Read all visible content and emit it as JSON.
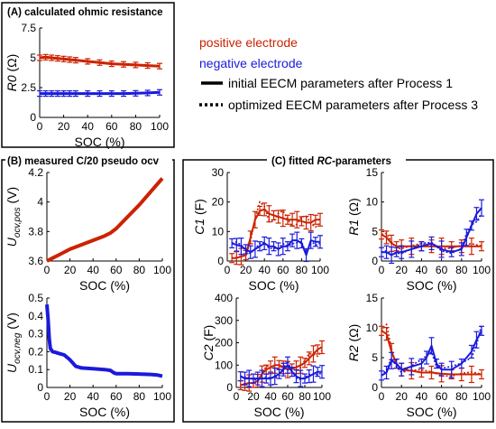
{
  "panels": {
    "A_title": "(A) calculated ohmic resistance",
    "B_title": "(B) measured C/20 pseudo ocv",
    "C_title": "(C) fitted RC-parameters",
    "C_title_prefix": "(C) fitted ",
    "C_title_italic": "RC",
    "C_title_suffix": "-parameters"
  },
  "legend": {
    "positive": "positive electrode",
    "negative": "negative electrode",
    "solid": "initial EECM parameters after Process 1",
    "dotted": "optimized EECM parameters after Process 3"
  },
  "colors": {
    "positive": "#cc2200",
    "negative": "#1a1adb",
    "axis": "#000000"
  },
  "chart_data": [
    {
      "id": "R0",
      "type": "line",
      "ylabel": "R0 (Ω)",
      "xlabel": "SOC (%)",
      "xlim": [
        0,
        100
      ],
      "ylim": [
        0,
        7.5
      ],
      "xticks": [
        "0",
        "20",
        "40",
        "60",
        "80",
        "100"
      ],
      "yticks": [
        "0",
        "2.5",
        "5",
        "7.5"
      ],
      "series": [
        {
          "name": "positive electrode",
          "x": [
            0,
            5,
            10,
            15,
            20,
            25,
            30,
            40,
            50,
            60,
            70,
            80,
            90,
            100
          ],
          "y": [
            5.0,
            5.05,
            5.0,
            4.95,
            4.9,
            4.85,
            4.8,
            4.7,
            4.6,
            4.5,
            4.45,
            4.4,
            4.35,
            4.3
          ]
        },
        {
          "name": "negative electrode",
          "x": [
            0,
            5,
            10,
            15,
            20,
            25,
            30,
            40,
            50,
            60,
            70,
            80,
            90,
            100
          ],
          "y": [
            2.0,
            2.0,
            2.0,
            2.0,
            2.0,
            2.0,
            2.0,
            2.0,
            2.0,
            2.0,
            2.0,
            2.02,
            2.05,
            2.1
          ]
        }
      ]
    },
    {
      "id": "Upos",
      "type": "line",
      "ylabel": "U_ocv,pos (V)",
      "xlabel": "SOC (%)",
      "xlim": [
        0,
        100
      ],
      "ylim": [
        3.6,
        4.2
      ],
      "xticks": [
        "0",
        "20",
        "40",
        "60",
        "80",
        "100"
      ],
      "yticks": [
        "3.6",
        "3.8",
        "4",
        "4.2"
      ],
      "series": [
        {
          "name": "positive electrode",
          "x": [
            0,
            5,
            10,
            20,
            30,
            40,
            50,
            55,
            60,
            70,
            80,
            90,
            100
          ],
          "y": [
            3.6,
            3.62,
            3.64,
            3.68,
            3.71,
            3.74,
            3.77,
            3.79,
            3.82,
            3.9,
            3.98,
            4.07,
            4.16
          ]
        }
      ]
    },
    {
      "id": "Uneg",
      "type": "line",
      "ylabel": "U_ocv,neg (V)",
      "xlabel": "SOC (%)",
      "xlim": [
        0,
        100
      ],
      "ylim": [
        0,
        0.55
      ],
      "xticks": [
        "0",
        "20",
        "40",
        "60",
        "80",
        "100"
      ],
      "yticks": [
        "0",
        "0.1",
        "0.2",
        "0.3",
        "0.4",
        "0.5"
      ],
      "series": [
        {
          "name": "negative electrode",
          "x": [
            0,
            1,
            2,
            3,
            5,
            8,
            10,
            15,
            20,
            25,
            30,
            40,
            50,
            55,
            58,
            60,
            70,
            80,
            90,
            95,
            100
          ],
          "y": [
            0.51,
            0.42,
            0.3,
            0.24,
            0.22,
            0.215,
            0.21,
            0.2,
            0.17,
            0.13,
            0.12,
            0.115,
            0.11,
            0.105,
            0.09,
            0.085,
            0.085,
            0.083,
            0.08,
            0.077,
            0.07
          ]
        }
      ]
    },
    {
      "id": "C1",
      "type": "line",
      "ylabel": "C1 (F)",
      "xlabel": "SOC (%)",
      "xlim": [
        0,
        100
      ],
      "ylim": [
        0,
        30
      ],
      "xticks": [
        "0",
        "20",
        "40",
        "60",
        "80",
        "100"
      ],
      "yticks": [
        "0",
        "10",
        "20",
        "30"
      ],
      "series": [
        {
          "name": "positive electrode",
          "x": [
            5,
            10,
            15,
            20,
            25,
            30,
            35,
            40,
            45,
            50,
            55,
            60,
            65,
            70,
            75,
            80,
            85,
            90,
            95,
            100
          ],
          "y": [
            1,
            1,
            1.5,
            2,
            8,
            14,
            17,
            17.5,
            16,
            15.5,
            15,
            14.5,
            14,
            14,
            14,
            13.5,
            13,
            13,
            14,
            14
          ]
        },
        {
          "name": "negative electrode",
          "x": [
            5,
            10,
            15,
            20,
            25,
            30,
            35,
            40,
            45,
            50,
            55,
            60,
            65,
            70,
            75,
            80,
            85,
            90,
            95,
            100
          ],
          "y": [
            6,
            5.5,
            5,
            4,
            3,
            4,
            5,
            6,
            5,
            5,
            4,
            5,
            5,
            7,
            7,
            6,
            2,
            7,
            6.5,
            6.5
          ]
        }
      ]
    },
    {
      "id": "R1",
      "type": "line",
      "ylabel": "R1 (Ω)",
      "xlabel": "SOC (%)",
      "xlim": [
        0,
        100
      ],
      "ylim": [
        0,
        15
      ],
      "xticks": [
        "0",
        "20",
        "40",
        "60",
        "80",
        "100"
      ],
      "yticks": [
        "0",
        "5",
        "10",
        "15"
      ],
      "series": [
        {
          "name": "positive electrode",
          "x": [
            0,
            5,
            10,
            15,
            20,
            30,
            40,
            50,
            60,
            70,
            80,
            90,
            100
          ],
          "y": [
            4.5,
            4,
            3,
            2.5,
            2.5,
            2.5,
            2.5,
            2.5,
            2.5,
            2.5,
            2.5,
            2.5,
            2.5
          ]
        },
        {
          "name": "negative electrode",
          "x": [
            0,
            5,
            10,
            15,
            20,
            30,
            40,
            50,
            60,
            70,
            80,
            85,
            90,
            95,
            100
          ],
          "y": [
            1.5,
            1.5,
            1,
            1.5,
            1.5,
            2,
            2.5,
            3,
            2,
            1.5,
            2,
            4,
            6,
            8,
            9
          ]
        }
      ]
    },
    {
      "id": "C2",
      "type": "line",
      "ylabel": "C2 (F)",
      "xlabel": "SOC (%)",
      "xlim": [
        0,
        100
      ],
      "ylim": [
        0,
        400
      ],
      "xticks": [
        "0",
        "20",
        "40",
        "60",
        "80",
        "100"
      ],
      "yticks": [
        "0",
        "100",
        "200",
        "300",
        "400"
      ],
      "series": [
        {
          "name": "positive electrode",
          "x": [
            5,
            10,
            15,
            20,
            25,
            30,
            35,
            40,
            45,
            50,
            55,
            60,
            65,
            70,
            75,
            80,
            85,
            90,
            95,
            100
          ],
          "y": [
            10,
            15,
            20,
            20,
            30,
            60,
            80,
            90,
            100,
            100,
            90,
            80,
            85,
            90,
            100,
            110,
            130,
            150,
            170,
            180
          ]
        },
        {
          "name": "negative electrode",
          "x": [
            5,
            10,
            15,
            20,
            25,
            30,
            35,
            40,
            45,
            50,
            55,
            60,
            65,
            70,
            75,
            80,
            85,
            90,
            95,
            100
          ],
          "y": [
            50,
            40,
            40,
            40,
            40,
            40,
            40,
            40,
            50,
            60,
            80,
            100,
            70,
            50,
            40,
            40,
            50,
            60,
            70,
            70
          ]
        }
      ]
    },
    {
      "id": "R2",
      "type": "line",
      "ylabel": "R2 (Ω)",
      "xlabel": "SOC (%)",
      "xlim": [
        0,
        100
      ],
      "ylim": [
        0,
        15
      ],
      "xticks": [
        "0",
        "20",
        "40",
        "60",
        "80",
        "100"
      ],
      "yticks": [
        "0",
        "5",
        "10",
        "15"
      ],
      "series": [
        {
          "name": "positive electrode",
          "x": [
            0,
            5,
            10,
            15,
            20,
            30,
            40,
            50,
            60,
            70,
            80,
            90,
            100
          ],
          "y": [
            9.5,
            9,
            6,
            4,
            3,
            2.8,
            2.5,
            2.5,
            2.3,
            2.2,
            2.2,
            2.2,
            2.2
          ]
        },
        {
          "name": "negative electrode",
          "x": [
            0,
            5,
            10,
            15,
            20,
            30,
            40,
            45,
            50,
            55,
            60,
            70,
            80,
            90,
            95,
            100
          ],
          "y": [
            2,
            2.5,
            4.5,
            4,
            3,
            3.5,
            4,
            5,
            7,
            4,
            3,
            3,
            4,
            6,
            8,
            9.5
          ]
        }
      ]
    }
  ]
}
